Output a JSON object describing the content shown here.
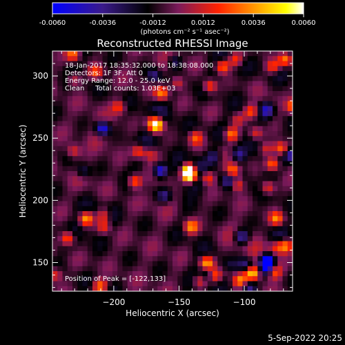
{
  "colorbar": {
    "ticks": [
      "-0.0060",
      "-0.0036",
      "-0.0012",
      "0.0012",
      "0.0036",
      "0.0060"
    ],
    "tick_values": [
      -0.006,
      -0.0036,
      -0.0012,
      0.0012,
      0.0036,
      0.006
    ],
    "range": [
      -0.006,
      0.006
    ],
    "units_label": "(photons cm⁻² s⁻¹ asec⁻²)",
    "colors": [
      "#0000ff",
      "#3a1a8a",
      "#000000",
      "#7a1a5a",
      "#ff2200",
      "#ffa500",
      "#ffff00",
      "#ffffff"
    ]
  },
  "chart_data": {
    "type": "heatmap",
    "title": "Reconstructed RHESSI Image",
    "xlabel": "Heliocentric X (arcsec)",
    "ylabel": "Heliocentric Y (arcsec)",
    "xlim": [
      -247,
      -63
    ],
    "ylim": [
      127,
      320
    ],
    "xticks": [
      -200,
      -150,
      -100
    ],
    "yticks": [
      150,
      200,
      250,
      300
    ],
    "xtick_labels": [
      "−200",
      "−150",
      "−100"
    ],
    "ytick_labels": [
      "150",
      "200",
      "250",
      "300"
    ],
    "annotations": [
      "18-Jan-2017 18:35:32.000 to 18:38:08.000",
      "Detectors: 1F 3F, Att 0",
      "Energy Range: 12.0 - 25.0 keV",
      "Clean     Total counts: 1.03E+03"
    ],
    "peak_label": "Position of Peak = [-122,133]",
    "peak": [
      -122,
      133
    ],
    "grid": false
  },
  "footer": {
    "date": "5-Sep-2022 20:25"
  }
}
